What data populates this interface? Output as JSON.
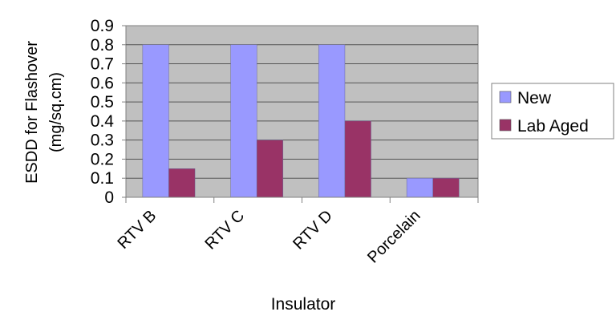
{
  "chart_data": {
    "type": "bar",
    "title": "",
    "xlabel": "Insulator",
    "ylabel": [
      "ESDD for Flashover",
      "(mg/sq.cm)"
    ],
    "categories": [
      "RTV B",
      "RTV C",
      "RTV D",
      "Porcelain"
    ],
    "series": [
      {
        "name": "New",
        "values": [
          0.8,
          0.8,
          0.8,
          0.1
        ],
        "color": "#9999FF"
      },
      {
        "name": "Lab Aged",
        "values": [
          0.15,
          0.3,
          0.4,
          0.1
        ],
        "color": "#993366"
      }
    ],
    "ylim": [
      0,
      0.9
    ],
    "yticks": [
      "0",
      "0.1",
      "0.2",
      "0.3",
      "0.4",
      "0.5",
      "0.6",
      "0.7",
      "0.8",
      "0.9"
    ],
    "grid": true,
    "plot_background": "#C0C0C0",
    "legend_position": "right"
  }
}
